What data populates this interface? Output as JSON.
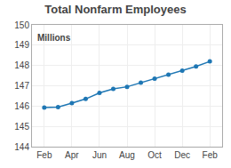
{
  "chart_data": {
    "type": "line",
    "title": "Total Nonfarm Employees",
    "ylabel": "Millions",
    "categories": [
      "Feb",
      null,
      "Apr",
      null,
      "Jun",
      null,
      "Aug",
      null,
      "Oct",
      null,
      "Dec",
      null,
      "Feb"
    ],
    "values": [
      145.93,
      145.95,
      146.15,
      146.35,
      146.65,
      146.85,
      146.95,
      147.15,
      147.35,
      147.55,
      147.75,
      147.95,
      148.2
    ],
    "ylim": [
      144,
      150
    ],
    "yticks": [
      144,
      145,
      146,
      147,
      148,
      149,
      150
    ],
    "marker": "circle",
    "grid": true
  }
}
